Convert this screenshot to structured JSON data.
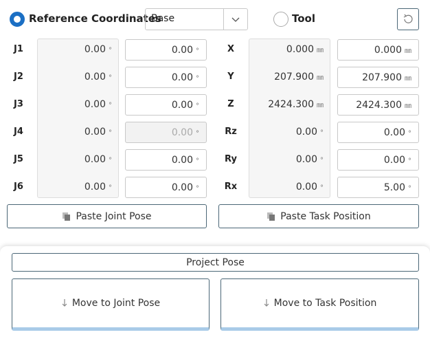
{
  "header": {
    "reference_label": "Reference Coordinates",
    "frame": "Base",
    "tool_label": "Tool"
  },
  "joints": {
    "rows": [
      {
        "label": "J1",
        "current": {
          "value": "0.00",
          "unit": "°"
        },
        "target": {
          "value": "0.00",
          "unit": "°"
        }
      },
      {
        "label": "J2",
        "current": {
          "value": "0.00",
          "unit": "°"
        },
        "target": {
          "value": "0.00",
          "unit": "°"
        }
      },
      {
        "label": "J3",
        "current": {
          "value": "0.00",
          "unit": "°"
        },
        "target": {
          "value": "0.00",
          "unit": "°"
        }
      },
      {
        "label": "J4",
        "current": {
          "value": "0.00",
          "unit": "°"
        },
        "target": {
          "value": "0.00",
          "unit": "°",
          "disabled": true
        }
      },
      {
        "label": "J5",
        "current": {
          "value": "0.00",
          "unit": "°"
        },
        "target": {
          "value": "0.00",
          "unit": "°"
        }
      },
      {
        "label": "J6",
        "current": {
          "value": "0.00",
          "unit": "°"
        },
        "target": {
          "value": "0.00",
          "unit": "°"
        }
      }
    ]
  },
  "task": {
    "rows": [
      {
        "label": "X",
        "current": {
          "value": "0.000",
          "unit": "㎜"
        },
        "target": {
          "value": "0.000",
          "unit": "㎜"
        }
      },
      {
        "label": "Y",
        "current": {
          "value": "207.900",
          "unit": "㎜"
        },
        "target": {
          "value": "207.900",
          "unit": "㎜"
        }
      },
      {
        "label": "Z",
        "current": {
          "value": "2424.300",
          "unit": "㎜"
        },
        "target": {
          "value": "2424.300",
          "unit": "㎜"
        }
      },
      {
        "label": "Rz",
        "current": {
          "value": "0.00",
          "unit": "°"
        },
        "target": {
          "value": "0.00",
          "unit": "°"
        }
      },
      {
        "label": "Ry",
        "current": {
          "value": "0.00",
          "unit": "°"
        },
        "target": {
          "value": "0.00",
          "unit": "°"
        }
      },
      {
        "label": "Rx",
        "current": {
          "value": "0.00",
          "unit": "°"
        },
        "target": {
          "value": "5.00",
          "unit": "°"
        }
      }
    ]
  },
  "buttons": {
    "paste_joint": "Paste Joint Pose",
    "paste_task": "Paste Task Position",
    "project": "Project Pose",
    "move_joint": "Move to Joint Pose",
    "move_task": "Move to Task Position"
  }
}
